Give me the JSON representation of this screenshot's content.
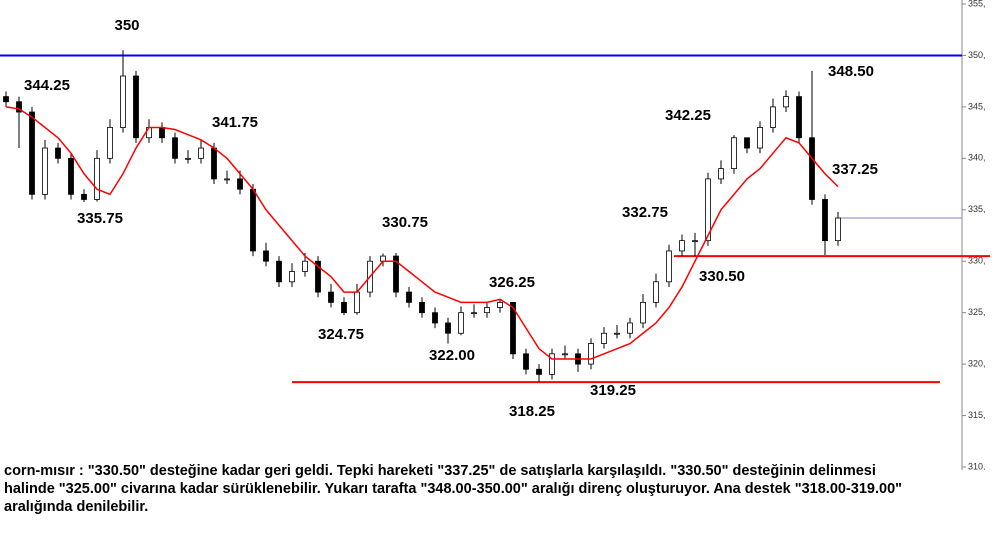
{
  "chart_data": {
    "type": "candlestick",
    "open": [
      346,
      345.5,
      344.5,
      336.5,
      341,
      340,
      336.5,
      336,
      340,
      343,
      348,
      342,
      343,
      342,
      340,
      340,
      341,
      338,
      338,
      337,
      331,
      330,
      328,
      329,
      330,
      327,
      326,
      325,
      327,
      330,
      330.5,
      327,
      326,
      325,
      324,
      323,
      325,
      325,
      325.5,
      326,
      321,
      319.5,
      319,
      321,
      321,
      320,
      322,
      323,
      323,
      324,
      326,
      328,
      331,
      332,
      332,
      338,
      339,
      342,
      341,
      343,
      345,
      346,
      342,
      336,
      332
    ],
    "high": [
      346.5,
      346,
      345,
      341.8,
      341.5,
      340.5,
      337,
      340.8,
      343.8,
      350.5,
      348.5,
      343.8,
      343.5,
      342.5,
      340.8,
      341.8,
      341.5,
      338.8,
      338.8,
      337.5,
      331.8,
      330.5,
      329.8,
      330.8,
      330.5,
      327.8,
      326.5,
      327.8,
      330.5,
      330.75,
      330.8,
      327.5,
      326.5,
      325.5,
      324.5,
      325.6,
      325.8,
      326,
      326.25,
      326,
      321.5,
      320,
      321.5,
      321.8,
      321.5,
      322.5,
      323.6,
      323.8,
      324.5,
      326.8,
      328.8,
      331.6,
      332.6,
      332.75,
      338.6,
      339.8,
      342.25,
      342,
      343.6,
      345.8,
      346.6,
      346.5,
      348.5,
      336.5,
      334.8
    ],
    "low": [
      345,
      341,
      336,
      336,
      339.5,
      336,
      335.75,
      335.8,
      339.5,
      342.5,
      341.5,
      341.5,
      341.5,
      339.5,
      339.5,
      339.5,
      337.5,
      337.5,
      336.5,
      330.5,
      329.5,
      327.5,
      327.5,
      328.5,
      326.5,
      325.5,
      324.75,
      324.8,
      326.5,
      329.5,
      326.5,
      325.5,
      324.5,
      323.5,
      322,
      322.8,
      324.5,
      324.5,
      325,
      320.5,
      319,
      318.25,
      318.5,
      320.5,
      319.25,
      319.5,
      321.5,
      322.5,
      322.5,
      323.5,
      325.5,
      327.5,
      330.5,
      330.5,
      331.5,
      337.5,
      338.5,
      340.5,
      340.5,
      342.5,
      344.5,
      341.5,
      335.5,
      330.6,
      331.5
    ],
    "close": [
      345.5,
      344.5,
      336.5,
      341,
      340,
      336.5,
      336,
      340,
      343,
      348,
      342,
      343,
      342,
      340,
      340,
      341,
      338,
      338,
      337,
      331,
      330,
      328,
      329,
      330,
      327,
      326,
      325,
      327,
      330,
      330.5,
      327,
      326,
      325,
      324,
      323,
      325,
      325,
      325.5,
      326,
      321,
      319.5,
      319,
      321,
      321,
      320,
      322,
      323,
      323,
      324,
      326,
      328,
      331,
      332,
      332,
      338,
      339,
      342,
      341,
      343,
      345,
      346,
      342,
      336,
      332,
      334.2
    ],
    "moving_average": {
      "color": "#ff0000",
      "values": [
        345,
        344.8,
        344,
        343,
        342,
        340.5,
        338.5,
        337,
        336.5,
        338.5,
        341,
        343,
        343,
        342.8,
        342.3,
        341.8,
        341,
        340,
        338.5,
        337,
        335,
        333.5,
        332,
        330.5,
        329.5,
        328.5,
        327,
        327,
        328.5,
        330,
        330,
        329,
        328,
        327,
        326.5,
        326,
        326,
        326,
        326.3,
        325.5,
        323.5,
        321.5,
        320.5,
        320.5,
        320.5,
        320.5,
        321,
        321.5,
        322,
        323,
        324,
        325.5,
        327.5,
        330,
        332.5,
        335,
        336.5,
        338,
        339,
        340.5,
        342,
        341.5,
        340,
        338.5,
        337.25
      ]
    },
    "last_price": {
      "value": 334.2,
      "color": "#8080c0"
    },
    "levels": [
      {
        "value": 350,
        "color": "#0000ff"
      },
      {
        "value": 330.5,
        "color": "#ff0000"
      },
      {
        "value": 318.25,
        "color": "#ff0000"
      }
    ],
    "annotations": [
      350,
      344.25,
      335.75,
      341.75,
      330.75,
      324.75,
      {
        "value": 322,
        "label": "322.00"
      },
      326.25,
      318.25,
      319.25,
      332.75,
      342.25,
      {
        "value": 330.5,
        "label": "330.50"
      },
      {
        "value": 348.5,
        "label": "348.50"
      },
      337.25
    ],
    "ylim": [
      310,
      355
    ],
    "yticks": [
      {
        "value": 310,
        "label": "310,"
      },
      {
        "value": 315,
        "label": "315,"
      },
      {
        "value": 320,
        "label": "320,"
      },
      {
        "value": 325,
        "label": "325,"
      },
      {
        "value": 330,
        "label": "330,"
      },
      {
        "value": 335,
        "label": "335,"
      },
      {
        "value": 340,
        "label": "340,"
      },
      {
        "value": 345,
        "label": "345,"
      },
      {
        "value": 350,
        "label": "350,"
      },
      {
        "value": 355,
        "label": "355,"
      }
    ],
    "caption": [
      "corn-mısır : \"330.50\" desteğine kadar geri geldi. Tepki hareketi \"337.25\" de satışlarla karşılaşıldı. \"330.50\" desteğinin delinmesi",
      "halinde \"325.00\" civarına kadar sürüklenebilir. Yukarı tarafta \"348.00-350.00\" aralığı direnç oluşturuyor. Ana destek \"318.00-319.00\"",
      "aralığında denilebilir."
    ]
  }
}
